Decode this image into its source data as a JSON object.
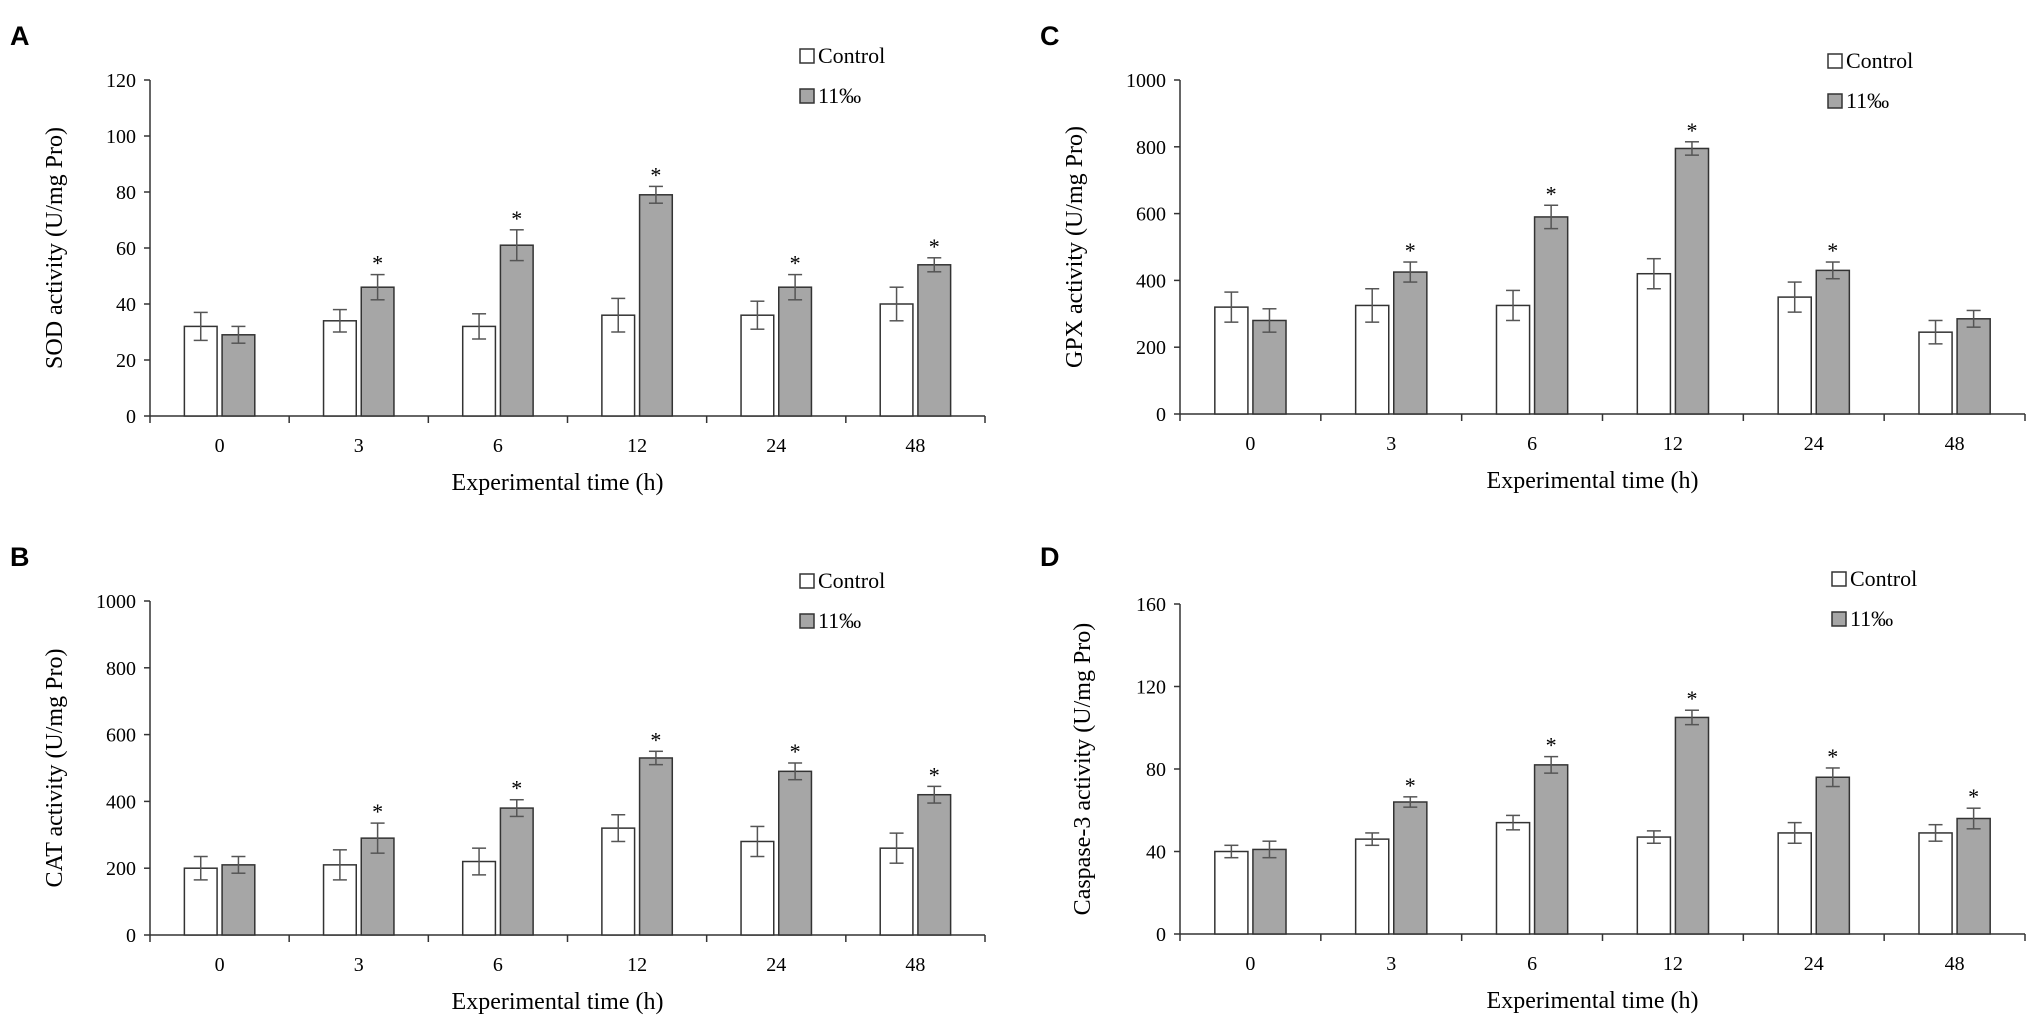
{
  "legend": {
    "control_label": "Control",
    "treatment_label": "11‰"
  },
  "colors": {
    "control_fill": "#ffffff",
    "treatment_fill": "#a6a6a6",
    "bar_stroke": "#333333",
    "error_bar": "#555555",
    "axis": "#333333"
  },
  "chart_data": [
    {
      "id": "A",
      "type": "bar",
      "panel_label": "A",
      "title": "",
      "xlabel": "Experimental time (h)",
      "ylabel": "SOD activity (U/mg Pro)",
      "categories": [
        "0",
        "3",
        "6",
        "12",
        "24",
        "48"
      ],
      "ylim": [
        0,
        120
      ],
      "yticks": [
        0,
        20,
        40,
        60,
        80,
        100,
        120
      ],
      "series": [
        {
          "name": "Control",
          "values": [
            32,
            34,
            32,
            36,
            36,
            40
          ],
          "errors": [
            5,
            4,
            4.5,
            6,
            5,
            6
          ]
        },
        {
          "name": "11‰",
          "values": [
            29,
            46,
            61,
            79,
            46,
            54
          ],
          "errors": [
            3,
            4.5,
            5.5,
            3,
            4.5,
            2.5
          ]
        }
      ],
      "significance": [
        "",
        "*",
        "*",
        "*",
        "*",
        "*"
      ]
    },
    {
      "id": "B",
      "type": "bar",
      "panel_label": "B",
      "title": "",
      "xlabel": "Experimental time (h)",
      "ylabel": "CAT activity (U/mg Pro)",
      "categories": [
        "0",
        "3",
        "6",
        "12",
        "24",
        "48"
      ],
      "ylim": [
        0,
        1000
      ],
      "yticks": [
        0,
        200,
        400,
        600,
        800,
        1000
      ],
      "series": [
        {
          "name": "Control",
          "values": [
            200,
            210,
            220,
            320,
            280,
            260
          ],
          "errors": [
            35,
            45,
            40,
            40,
            45,
            45
          ]
        },
        {
          "name": "11‰",
          "values": [
            210,
            290,
            380,
            530,
            490,
            420
          ],
          "errors": [
            25,
            45,
            25,
            20,
            25,
            25
          ]
        }
      ],
      "significance": [
        "",
        "*",
        "*",
        "*",
        "*",
        "*"
      ]
    },
    {
      "id": "C",
      "type": "bar",
      "panel_label": "C",
      "title": "",
      "xlabel": "Experimental time (h)",
      "ylabel": "GPX activity (U/mg Pro)",
      "categories": [
        "0",
        "3",
        "6",
        "12",
        "24",
        "48"
      ],
      "ylim": [
        0,
        1000
      ],
      "yticks": [
        0,
        200,
        400,
        600,
        800,
        1000
      ],
      "series": [
        {
          "name": "Control",
          "values": [
            320,
            325,
            325,
            420,
            350,
            245
          ],
          "errors": [
            45,
            50,
            45,
            45,
            45,
            35
          ]
        },
        {
          "name": "11‰",
          "values": [
            280,
            425,
            590,
            795,
            430,
            285
          ],
          "errors": [
            35,
            30,
            35,
            20,
            25,
            25
          ]
        }
      ],
      "significance": [
        "",
        "*",
        "*",
        "*",
        "*",
        ""
      ]
    },
    {
      "id": "D",
      "type": "bar",
      "panel_label": "D",
      "title": "",
      "xlabel": "Experimental time (h)",
      "ylabel": "Caspase-3 activity (U/mg Pro)",
      "categories": [
        "0",
        "3",
        "6",
        "12",
        "24",
        "48"
      ],
      "ylim": [
        0,
        160
      ],
      "yticks": [
        0,
        40,
        80,
        120,
        160
      ],
      "series": [
        {
          "name": "Control",
          "values": [
            40,
            46,
            54,
            47,
            49,
            49
          ],
          "errors": [
            3,
            3,
            3.5,
            3,
            5,
            4
          ]
        },
        {
          "name": "11‰",
          "values": [
            41,
            64,
            82,
            105,
            76,
            56
          ],
          "errors": [
            4,
            2.5,
            4,
            3.5,
            4.5,
            5
          ]
        }
      ],
      "significance": [
        "",
        "*",
        "*",
        "*",
        "*",
        "*"
      ]
    }
  ]
}
